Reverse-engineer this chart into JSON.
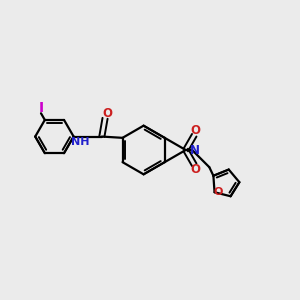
{
  "bg_color": "#ebebeb",
  "bond_color": "#000000",
  "N_color": "#2020cc",
  "O_color": "#cc2020",
  "I_color": "#cc00cc",
  "lw": 1.6,
  "dlw": 1.4,
  "fs": 8.5,
  "fig_size": [
    3.0,
    3.0
  ],
  "xlim": [
    -2.2,
    2.4
  ],
  "ylim": [
    -1.4,
    1.4
  ]
}
